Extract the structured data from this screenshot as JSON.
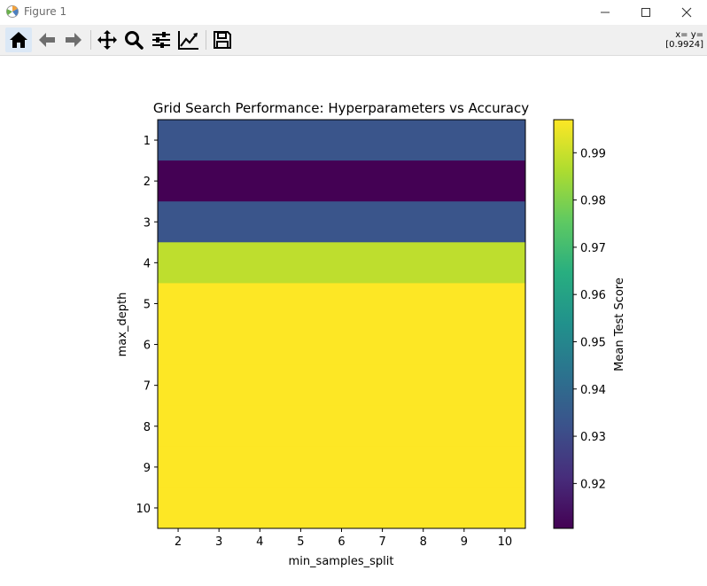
{
  "window": {
    "title": "Figure 1"
  },
  "toolbar": {
    "tools": [
      "home-icon",
      "back-arrow-icon",
      "forward-arrow-icon",
      "pan-icon",
      "zoom-icon",
      "configure-subplots-icon",
      "edit-axis-icon",
      "save-icon"
    ],
    "coords_line1": "x= y=",
    "coords_line2": "[0.9924]"
  },
  "chart_data": {
    "type": "heatmap",
    "title": "Grid Search Performance: Hyperparameters vs Accuracy",
    "xlabel": "min_samples_split",
    "ylabel": "max_depth",
    "x": [
      2,
      3,
      4,
      5,
      6,
      7,
      8,
      9,
      10
    ],
    "y": [
      1,
      2,
      3,
      4,
      5,
      6,
      7,
      8,
      9,
      10
    ],
    "row_values": [
      0.933,
      0.9105,
      0.933,
      0.9885,
      0.997,
      0.997,
      0.997,
      0.997,
      0.997,
      0.997
    ],
    "colormap": "viridis",
    "colorbar": {
      "label": "Mean Test Score",
      "range": [
        0.9105,
        0.997
      ],
      "ticks": [
        0.92,
        0.93,
        0.94,
        0.95,
        0.96,
        0.97,
        0.98,
        0.99
      ]
    }
  }
}
